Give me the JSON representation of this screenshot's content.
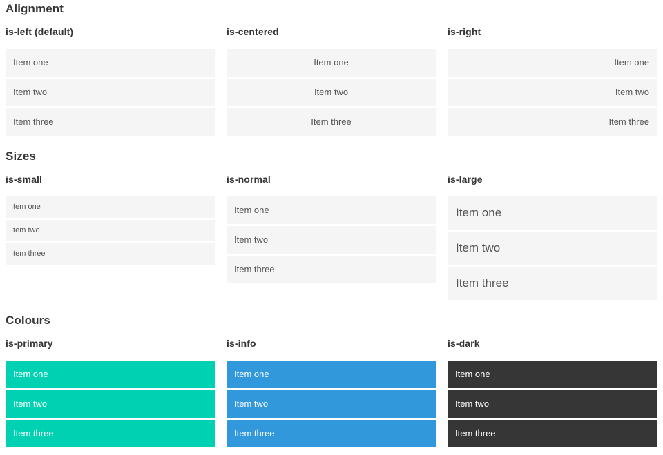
{
  "sections": [
    {
      "title": "Alignment",
      "groups": [
        {
          "label": "is-left (default)",
          "variant": "left",
          "items": [
            "Item one",
            "Item two",
            "Item three"
          ]
        },
        {
          "label": "is-centered",
          "variant": "centered",
          "items": [
            "Item one",
            "Item two",
            "Item three"
          ]
        },
        {
          "label": "is-right",
          "variant": "right",
          "items": [
            "Item one",
            "Item two",
            "Item three"
          ]
        }
      ]
    },
    {
      "title": "Sizes",
      "groups": [
        {
          "label": "is-small",
          "variant": "small",
          "items": [
            "Item one",
            "Item two",
            "Item three"
          ]
        },
        {
          "label": "is-normal",
          "variant": "normal",
          "items": [
            "Item one",
            "Item two",
            "Item three"
          ]
        },
        {
          "label": "is-large",
          "variant": "large",
          "items": [
            "Item one",
            "Item two",
            "Item three"
          ]
        }
      ]
    },
    {
      "title": "Colours",
      "groups": [
        {
          "label": "is-primary",
          "variant": "primary",
          "items": [
            "Item one",
            "Item two",
            "Item three"
          ]
        },
        {
          "label": "is-info",
          "variant": "info",
          "items": [
            "Item one",
            "Item two",
            "Item three"
          ]
        },
        {
          "label": "is-dark",
          "variant": "dark",
          "items": [
            "Item one",
            "Item two",
            "Item three"
          ]
        }
      ]
    }
  ],
  "colors": {
    "primary": "#00d1b2",
    "info": "#3298dc",
    "dark": "#363636",
    "item_bg": "#f5f5f5",
    "item_text": "#555555",
    "heading_text": "#363636",
    "light_text": "#ffffff",
    "page_bg": "#ffffff"
  }
}
